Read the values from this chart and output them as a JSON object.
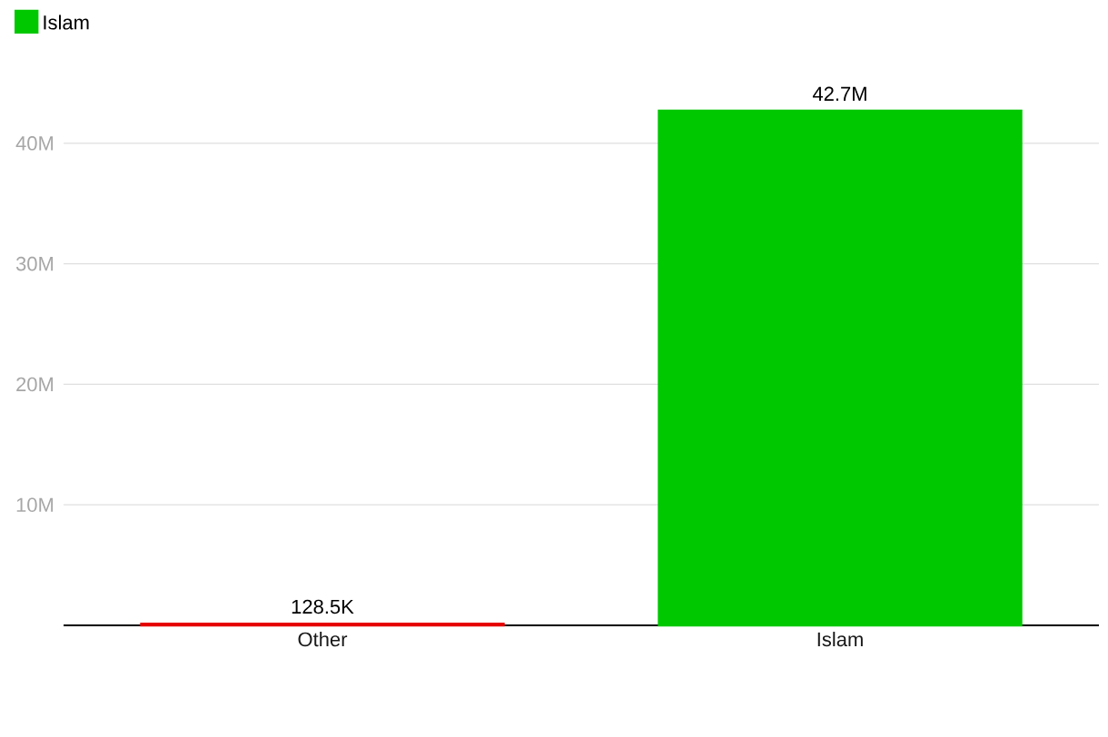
{
  "chart_data": {
    "type": "bar",
    "categories": [
      "Other",
      "Islam"
    ],
    "series": [
      {
        "color": "#e60000",
        "values": [
          128500,
          null
        ],
        "value_labels": [
          "128.5K",
          null
        ]
      },
      {
        "name": "Islam",
        "color": "#00c800",
        "values": [
          null,
          42700000
        ],
        "value_labels": [
          null,
          "42.7M"
        ]
      }
    ],
    "ylim": [
      0,
      42700000
    ],
    "yticks": [
      {
        "value": 10000000,
        "label": "10M"
      },
      {
        "value": 20000000,
        "label": "20M"
      },
      {
        "value": 30000000,
        "label": "30M"
      },
      {
        "value": 40000000,
        "label": "40M"
      }
    ],
    "grid": "y",
    "legend": "top left"
  }
}
